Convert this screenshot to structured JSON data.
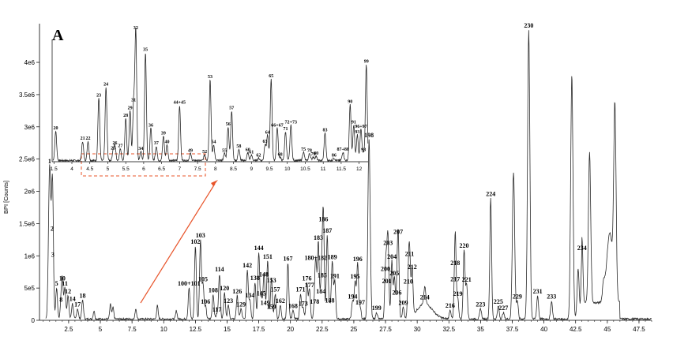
{
  "panel_label": "A",
  "chart_data": [
    {
      "type": "line",
      "ylabel": "BPI [Counts]",
      "xlim": [
        0.2,
        48.5
      ],
      "ylim": [
        0,
        4600000
      ],
      "x_ticks": [
        "2.5",
        "5",
        "7.5",
        "10",
        "12.5",
        "15",
        "17.5",
        "20",
        "22.5",
        "25",
        "27.5",
        "30",
        "32.5",
        "35",
        "37.5",
        "40",
        "42.5",
        "45",
        "47.5"
      ],
      "y_ticks": [
        "0",
        "5e5",
        "1e6",
        "1.5e6",
        "2e6",
        "2.5e6",
        "3e6",
        "3.5e6",
        "4e6"
      ],
      "grid": false,
      "peaks": [
        {
          "label": "1",
          "x": 1.0,
          "y": 2400000
        },
        {
          "label": "2",
          "x": 1.2,
          "y": 1350000
        },
        {
          "label": "3",
          "x": 1.25,
          "y": 950000
        },
        {
          "label": "5",
          "x": 1.55,
          "y": 500000
        },
        {
          "label": "8",
          "x": 1.9,
          "y": 250000
        },
        {
          "label": "10",
          "x": 2.0,
          "y": 580000
        },
        {
          "label": "11",
          "x": 2.2,
          "y": 500000
        },
        {
          "label": "12",
          "x": 2.45,
          "y": 380000
        },
        {
          "label": "14",
          "x": 2.8,
          "y": 260000
        },
        {
          "label": "17",
          "x": 3.2,
          "y": 180000
        },
        {
          "label": "18",
          "x": 3.6,
          "y": 310000
        },
        {
          "label": "100+101",
          "x": 12.0,
          "y": 500000
        },
        {
          "label": "102",
          "x": 12.5,
          "y": 1150000
        },
        {
          "label": "103",
          "x": 12.9,
          "y": 1250000
        },
        {
          "label": "105",
          "x": 13.1,
          "y": 570000
        },
        {
          "label": "106",
          "x": 13.3,
          "y": 220000
        },
        {
          "label": "108",
          "x": 13.9,
          "y": 400000
        },
        {
          "label": "114",
          "x": 14.4,
          "y": 720000
        },
        {
          "label": "117",
          "x": 14.2,
          "y": 100000
        },
        {
          "label": "120",
          "x": 14.8,
          "y": 430000
        },
        {
          "label": "123",
          "x": 15.1,
          "y": 230000
        },
        {
          "label": "126",
          "x": 15.8,
          "y": 380000
        },
        {
          "label": "129",
          "x": 16.1,
          "y": 180000
        },
        {
          "label": "134",
          "x": 16.8,
          "y": 320000
        },
        {
          "label": "138",
          "x": 17.2,
          "y": 590000
        },
        {
          "label": "142",
          "x": 16.6,
          "y": 780000
        },
        {
          "label": "144",
          "x": 17.5,
          "y": 1050000
        },
        {
          "label": "145",
          "x": 17.7,
          "y": 350000
        },
        {
          "label": "148",
          "x": 17.9,
          "y": 640000
        },
        {
          "label": "149",
          "x": 18.0,
          "y": 200000
        },
        {
          "label": "151",
          "x": 18.2,
          "y": 920000
        },
        {
          "label": "153",
          "x": 18.5,
          "y": 550000
        },
        {
          "label": "157",
          "x": 18.8,
          "y": 410000
        },
        {
          "label": "159",
          "x": 18.5,
          "y": 140000
        },
        {
          "label": "162",
          "x": 19.2,
          "y": 230000
        },
        {
          "label": "167",
          "x": 19.8,
          "y": 890000
        },
        {
          "label": "168",
          "x": 20.2,
          "y": 150000
        },
        {
          "label": "171",
          "x": 20.8,
          "y": 410000
        },
        {
          "label": "173",
          "x": 21.0,
          "y": 190000
        },
        {
          "label": "176",
          "x": 21.3,
          "y": 580000
        },
        {
          "label": "177",
          "x": 21.5,
          "y": 480000
        },
        {
          "label": "178",
          "x": 21.9,
          "y": 220000
        },
        {
          "label": "180+182",
          "x": 22.0,
          "y": 900000
        },
        {
          "label": "183",
          "x": 22.2,
          "y": 1210000
        },
        {
          "label": "184",
          "x": 22.4,
          "y": 380000
        },
        {
          "label": "185",
          "x": 22.5,
          "y": 630000
        },
        {
          "label": "186",
          "x": 22.6,
          "y": 1500000
        },
        {
          "label": "187",
          "x": 22.9,
          "y": 1320000
        },
        {
          "label": "188",
          "x": 23.1,
          "y": 240000
        },
        {
          "label": "189",
          "x": 23.3,
          "y": 910000
        },
        {
          "label": "191",
          "x": 23.5,
          "y": 620000
        },
        {
          "label": "194",
          "x": 24.9,
          "y": 300000
        },
        {
          "label": "195",
          "x": 25.1,
          "y": 610000
        },
        {
          "label": "196",
          "x": 25.3,
          "y": 880000
        },
        {
          "label": "197",
          "x": 25.5,
          "y": 210000
        },
        {
          "label": "198",
          "x": 26.2,
          "y": 2800000
        },
        {
          "label": "199",
          "x": 26.8,
          "y": 120000
        },
        {
          "label": "200",
          "x": 27.5,
          "y": 730000
        },
        {
          "label": "201",
          "x": 27.6,
          "y": 540000
        },
        {
          "label": "203",
          "x": 27.7,
          "y": 1130000
        },
        {
          "label": "204",
          "x": 28.0,
          "y": 920000
        },
        {
          "label": "205",
          "x": 28.2,
          "y": 660000
        },
        {
          "label": "206",
          "x": 28.4,
          "y": 360000
        },
        {
          "label": "207",
          "x": 28.5,
          "y": 1300000
        },
        {
          "label": "209",
          "x": 28.9,
          "y": 200000
        },
        {
          "label": "210",
          "x": 29.3,
          "y": 530000
        },
        {
          "label": "211",
          "x": 29.4,
          "y": 960000
        },
        {
          "label": "212",
          "x": 29.6,
          "y": 760000
        },
        {
          "label": "214",
          "x": 30.6,
          "y": 290000
        },
        {
          "label": "216",
          "x": 32.6,
          "y": 160000
        },
        {
          "label": "217",
          "x": 33.0,
          "y": 570000
        },
        {
          "label": "218",
          "x": 33.0,
          "y": 820000
        },
        {
          "label": "219",
          "x": 33.2,
          "y": 340000
        },
        {
          "label": "220",
          "x": 33.7,
          "y": 1090000
        },
        {
          "label": "221",
          "x": 33.9,
          "y": 560000
        },
        {
          "label": "223",
          "x": 35.0,
          "y": 180000
        },
        {
          "label": "224",
          "x": 35.8,
          "y": 1890000
        },
        {
          "label": "225",
          "x": 36.4,
          "y": 220000
        },
        {
          "label": "227",
          "x": 36.8,
          "y": 120000
        },
        {
          "label": "229",
          "x": 37.9,
          "y": 300000
        },
        {
          "label": "230",
          "x": 38.8,
          "y": 4500000
        },
        {
          "label": "231",
          "x": 39.5,
          "y": 380000
        },
        {
          "label": "233",
          "x": 40.6,
          "y": 300000
        },
        {
          "label": "234",
          "x": 43.0,
          "y": 1050000
        }
      ]
    },
    {
      "type": "line",
      "title": "",
      "x_ticks": [
        "1.5",
        "4",
        "4.5",
        "5",
        "5.5",
        "6",
        "6.5",
        "7",
        "7.5",
        "8",
        "8.5",
        "9",
        "9.5",
        "10",
        "10.5",
        "11",
        "11.5",
        "12"
      ],
      "xlim": [
        3.45,
        12.25
      ],
      "ylim": [
        2400000,
        4700000
      ],
      "peaks": [
        {
          "label": "20",
          "x": 3.55,
          "y": 2910000
        },
        {
          "label": "21",
          "x": 4.3,
          "y": 2740000
        },
        {
          "label": "22",
          "x": 4.45,
          "y": 2740000
        },
        {
          "label": "23",
          "x": 4.75,
          "y": 3460000
        },
        {
          "label": "24",
          "x": 4.95,
          "y": 3640000
        },
        {
          "label": "25",
          "x": 5.15,
          "y": 2580000
        },
        {
          "label": "26",
          "x": 5.2,
          "y": 2660000
        },
        {
          "label": "27",
          "x": 5.35,
          "y": 2620000
        },
        {
          "label": "28",
          "x": 5.5,
          "y": 3120000
        },
        {
          "label": "29",
          "x": 5.62,
          "y": 3250000
        },
        {
          "label": "31",
          "x": 5.72,
          "y": 3380000
        },
        {
          "label": "32",
          "x": 5.78,
          "y": 4580000
        },
        {
          "label": "34",
          "x": 5.92,
          "y": 2570000
        },
        {
          "label": "35",
          "x": 6.05,
          "y": 4220000
        },
        {
          "label": "36",
          "x": 6.2,
          "y": 2960000
        },
        {
          "label": "37",
          "x": 6.35,
          "y": 2660000
        },
        {
          "label": "39",
          "x": 6.55,
          "y": 2830000
        },
        {
          "label": "40",
          "x": 6.65,
          "y": 2680000
        },
        {
          "label": "44+45",
          "x": 7.0,
          "y": 3340000
        },
        {
          "label": "49",
          "x": 7.3,
          "y": 2540000
        },
        {
          "label": "52",
          "x": 7.7,
          "y": 2520000
        },
        {
          "label": "53",
          "x": 7.85,
          "y": 3770000
        },
        {
          "label": "54",
          "x": 7.95,
          "y": 2680000
        },
        {
          "label": "55",
          "x": 8.25,
          "y": 2540000
        },
        {
          "label": "56",
          "x": 8.35,
          "y": 2980000
        },
        {
          "label": "57",
          "x": 8.45,
          "y": 3250000
        },
        {
          "label": "58",
          "x": 8.65,
          "y": 2610000
        },
        {
          "label": "60",
          "x": 8.9,
          "y": 2550000
        },
        {
          "label": "61",
          "x": 9.0,
          "y": 2510000
        },
        {
          "label": "62",
          "x": 9.2,
          "y": 2460000
        },
        {
          "label": "63",
          "x": 9.38,
          "y": 2690000
        },
        {
          "label": "64",
          "x": 9.45,
          "y": 2840000
        },
        {
          "label": "65",
          "x": 9.55,
          "y": 3780000
        },
        {
          "label": "66+67",
          "x": 9.72,
          "y": 2960000
        },
        {
          "label": "68",
          "x": 9.8,
          "y": 2470000
        },
        {
          "label": "71",
          "x": 9.95,
          "y": 2900000
        },
        {
          "label": "72+73",
          "x": 10.1,
          "y": 3010000
        },
        {
          "label": "75",
          "x": 10.45,
          "y": 2560000
        },
        {
          "label": "78",
          "x": 10.62,
          "y": 2540000
        },
        {
          "label": "79",
          "x": 10.72,
          "y": 2480000
        },
        {
          "label": "80",
          "x": 10.8,
          "y": 2490000
        },
        {
          "label": "83",
          "x": 11.05,
          "y": 2880000
        },
        {
          "label": "86",
          "x": 11.3,
          "y": 2460000
        },
        {
          "label": "87+88",
          "x": 11.55,
          "y": 2560000
        },
        {
          "label": "90",
          "x": 11.75,
          "y": 3350000
        },
        {
          "label": "91",
          "x": 11.85,
          "y": 3010000
        },
        {
          "label": "93",
          "x": 11.95,
          "y": 2850000
        },
        {
          "label": "96+97",
          "x": 12.05,
          "y": 2940000
        },
        {
          "label": "98",
          "x": 12.12,
          "y": 2550000
        },
        {
          "label": "99",
          "x": 12.2,
          "y": 4020000
        }
      ]
    }
  ]
}
